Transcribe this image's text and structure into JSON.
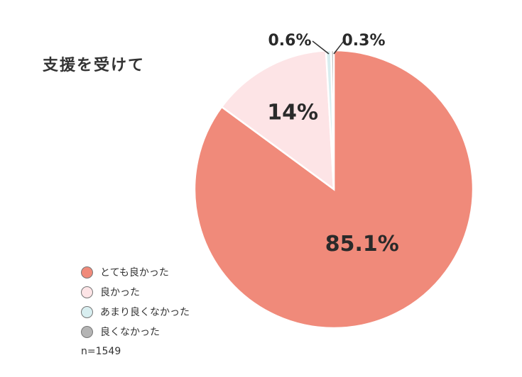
{
  "chart_data": {
    "type": "pie",
    "title": "支援を受けて",
    "slices": [
      {
        "name": "とても良かった",
        "value": 85.1,
        "label": "85.1%",
        "color": "#f08a7a"
      },
      {
        "name": "良かった",
        "value": 14,
        "label": "14%",
        "color": "#fde4e6"
      },
      {
        "name": "あまり良くなかった",
        "value": 0.6,
        "label": "0.6%",
        "color": "#d8eef0"
      },
      {
        "name": "良くなかった",
        "value": 0.3,
        "label": "0.3%",
        "color": "#b4b4b4"
      }
    ],
    "note": "n=1549",
    "legend_position": "bottom-left"
  }
}
